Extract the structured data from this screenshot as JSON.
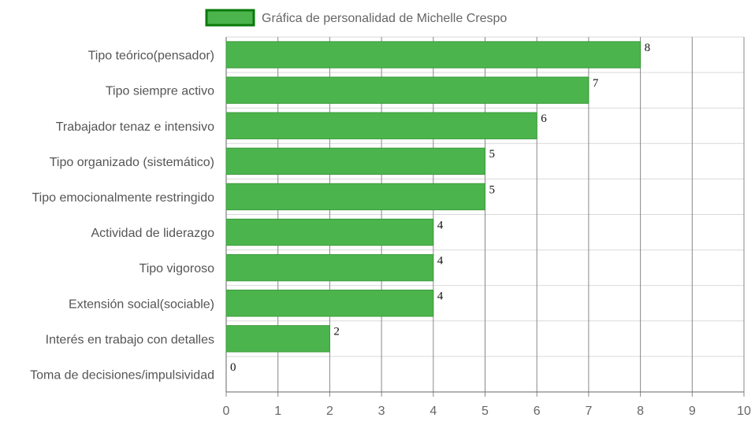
{
  "chart_data": {
    "type": "bar",
    "orientation": "horizontal",
    "legend": {
      "label": "Gráfica de personalidad de Michelle Crespo",
      "placement": "top"
    },
    "categories": [
      "Tipo teórico(pensador)",
      "Tipo siempre activo",
      "Trabajador tenaz e intensivo",
      "Tipo organizado (sistemático)",
      "Tipo emocionalmente restringido",
      "Actividad de liderazgo",
      "Tipo vigoroso",
      "Extensión social(sociable)",
      "Interés en trabajo con detalles",
      "Toma de decisiones/impulsividad"
    ],
    "series": [
      {
        "name": "Gráfica de personalidad de Michelle Crespo",
        "values": [
          8,
          7,
          6,
          5,
          5,
          4,
          4,
          4,
          2,
          0
        ]
      }
    ],
    "xlim": [
      0,
      10
    ],
    "xticks": [
      0,
      1,
      2,
      3,
      4,
      5,
      6,
      7,
      8,
      9,
      10
    ],
    "data_labels": true,
    "grid": true,
    "colors": {
      "bar_fill": "#4cb44c",
      "bar_border": "#3a9a3a",
      "legend_fill": "#4cb44c",
      "legend_border": "#0a7a0a",
      "grid": "#d9d9d9",
      "grid_dark": "#888888"
    }
  }
}
